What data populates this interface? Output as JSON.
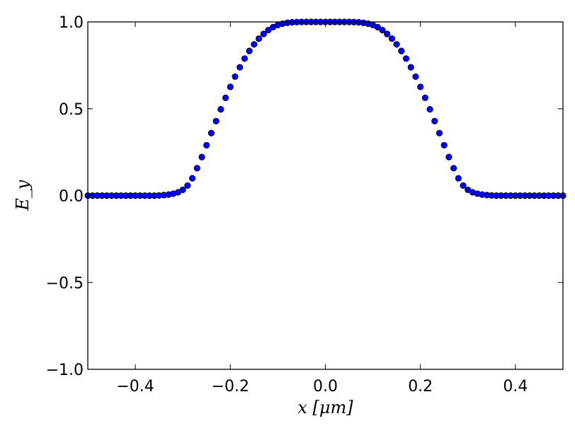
{
  "chart_data": {
    "type": "scatter",
    "title": "",
    "xlabel": "x [μm]",
    "ylabel": "E_y",
    "xlim": [
      -0.5,
      0.5
    ],
    "ylim": [
      -1.0,
      1.0
    ],
    "grid": false,
    "legend": "none",
    "xticks": [
      -0.4,
      -0.2,
      0.0,
      0.2,
      0.4
    ],
    "xtick_labels": [
      "−0.4",
      "−0.2",
      "0.0",
      "0.2",
      "0.4"
    ],
    "yticks": [
      -1.0,
      -0.5,
      0.0,
      0.5,
      1.0
    ],
    "ytick_labels": [
      "−1.0",
      "−0.5",
      "0.0",
      "0.5",
      "1.0"
    ],
    "marker_color": "#0000ff",
    "marker_edge": "#000000",
    "series": [
      {
        "x": [
          -0.5,
          -0.49,
          -0.48,
          -0.47,
          -0.46,
          -0.45,
          -0.44,
          -0.43,
          -0.42,
          -0.41,
          -0.4,
          -0.39,
          -0.38,
          -0.37,
          -0.36,
          -0.35,
          -0.34,
          -0.33,
          -0.32,
          -0.31,
          -0.3,
          -0.29,
          -0.28,
          -0.27,
          -0.26,
          -0.25,
          -0.24,
          -0.23,
          -0.22,
          -0.21,
          -0.2,
          -0.19,
          -0.18,
          -0.17,
          -0.16,
          -0.15,
          -0.14,
          -0.13,
          -0.12,
          -0.11,
          -0.1,
          -0.09,
          -0.08,
          -0.07,
          -0.06,
          -0.05,
          -0.04,
          -0.03,
          -0.02,
          -0.01,
          0.0,
          0.01,
          0.02,
          0.03,
          0.04,
          0.05,
          0.06,
          0.07,
          0.08,
          0.09,
          0.1,
          0.11,
          0.12,
          0.13,
          0.14,
          0.15,
          0.16,
          0.17,
          0.18,
          0.19,
          0.2,
          0.21,
          0.22,
          0.23,
          0.24,
          0.25,
          0.26,
          0.27,
          0.28,
          0.29,
          0.3,
          0.31,
          0.32,
          0.33,
          0.34,
          0.35,
          0.36,
          0.37,
          0.38,
          0.39,
          0.4,
          0.41,
          0.42,
          0.43,
          0.44,
          0.45,
          0.46,
          0.47,
          0.48,
          0.49,
          0.5
        ],
        "y": [
          0.0,
          0.0,
          0.0,
          0.0,
          0.0,
          0.0,
          0.0,
          0.0,
          0.0,
          0.0,
          0.0,
          0.0,
          0.0,
          0.0,
          0.0,
          0.001,
          0.003,
          0.006,
          0.011,
          0.019,
          0.033,
          0.058,
          0.1,
          0.158,
          0.222,
          0.29,
          0.36,
          0.429,
          0.497,
          0.563,
          0.626,
          0.685,
          0.739,
          0.789,
          0.833,
          0.871,
          0.904,
          0.931,
          0.953,
          0.97,
          0.982,
          0.99,
          0.995,
          0.998,
          0.999,
          1.0,
          1.0,
          1.0,
          1.0,
          1.0,
          1.0,
          1.0,
          1.0,
          1.0,
          1.0,
          1.0,
          0.999,
          0.998,
          0.995,
          0.99,
          0.982,
          0.97,
          0.953,
          0.931,
          0.904,
          0.871,
          0.833,
          0.789,
          0.739,
          0.685,
          0.626,
          0.563,
          0.497,
          0.429,
          0.36,
          0.29,
          0.222,
          0.158,
          0.1,
          0.058,
          0.033,
          0.019,
          0.011,
          0.006,
          0.003,
          0.001,
          0.0,
          0.0,
          0.0,
          0.0,
          0.0,
          0.0,
          0.0,
          0.0,
          0.0,
          0.0,
          0.0,
          0.0,
          0.0,
          0.0,
          0.0
        ]
      }
    ]
  }
}
